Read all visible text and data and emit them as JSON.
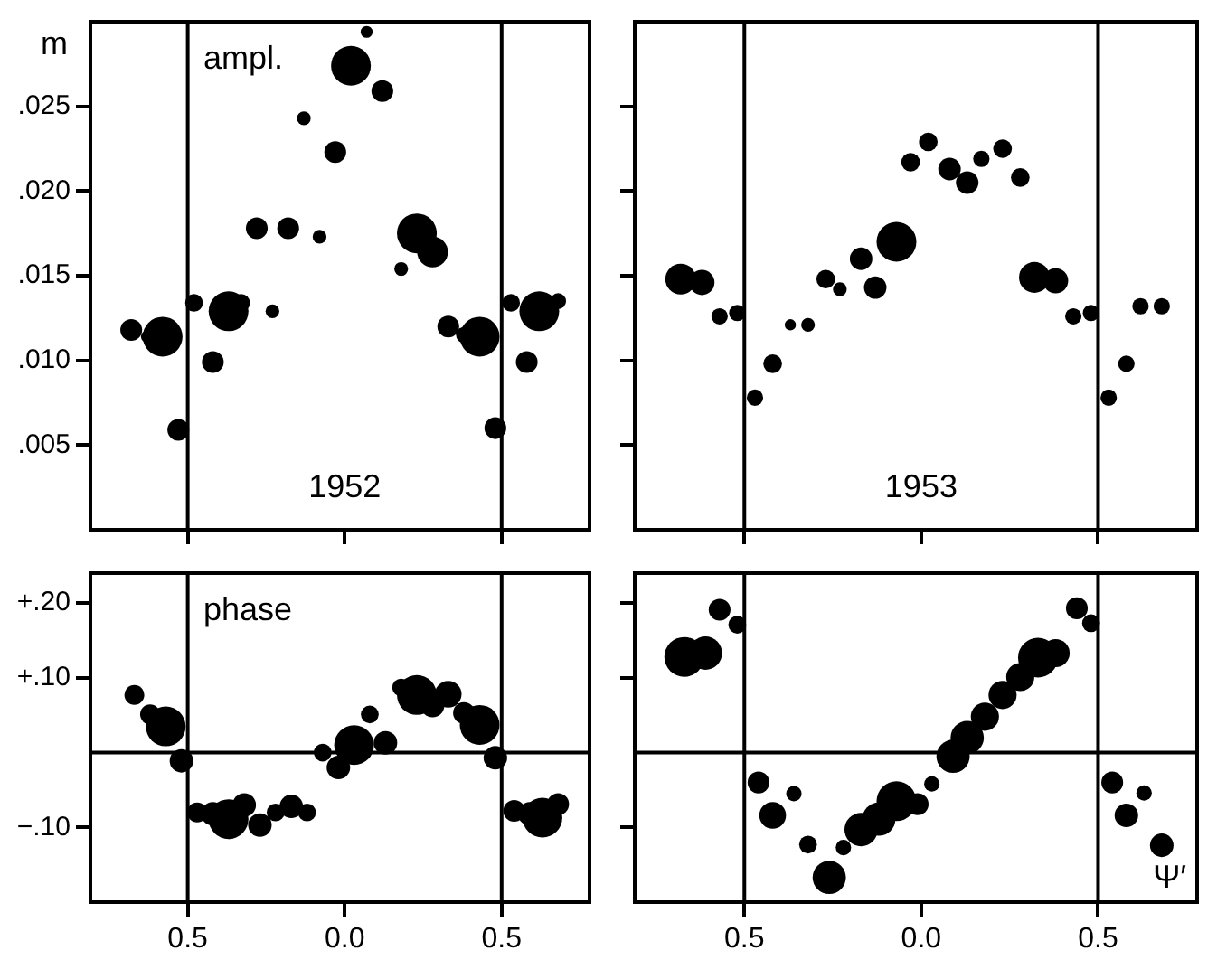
{
  "chart_data": [
    {
      "type": "bubble",
      "title": "1952",
      "ylabel": "m",
      "annotations": [
        "ampl."
      ],
      "color": "#000000",
      "tick_labels": "y",
      "grid": false,
      "xlim": [
        -0.81,
        0.78
      ],
      "xticks": [
        -0.5,
        0,
        0.5
      ],
      "ylim": [
        0,
        0.03
      ],
      "yticks": [
        {
          "value": 0.005,
          "label": ".005"
        },
        {
          "value": 0.01,
          "label": ".010"
        },
        {
          "value": 0.015,
          "label": ".015"
        },
        {
          "value": 0.02,
          "label": ".020"
        },
        {
          "value": 0.025,
          "label": ".025"
        }
      ],
      "ref_lines": [
        {
          "axis": "x",
          "value": -0.5
        },
        {
          "axis": "x",
          "value": 0.5
        }
      ],
      "x": [
        -0.68,
        -0.63,
        -0.58,
        -0.53,
        -0.48,
        -0.42,
        -0.37,
        -0.33,
        -0.28,
        -0.23,
        -0.18,
        -0.13,
        -0.08,
        -0.03,
        0.02,
        0.07,
        0.12,
        0.18,
        0.23,
        0.28,
        0.33,
        0.38,
        0.43,
        0.48,
        0.53,
        0.58,
        0.62,
        0.68
      ],
      "values": [
        0.0118,
        0.0114,
        0.0114,
        0.0059,
        0.0134,
        0.0099,
        0.0129,
        0.0134,
        0.0178,
        0.0129,
        0.0178,
        0.0243,
        0.0173,
        0.0223,
        0.0274,
        0.0294,
        0.0259,
        0.0154,
        0.0175,
        0.0164,
        0.012,
        0.0115,
        0.0114,
        0.006,
        0.0134,
        0.0099,
        0.0129,
        0.0135
      ],
      "sizes": [
        0.3,
        0.09,
        1,
        0.3,
        0.2,
        0.3,
        1,
        0.2,
        0.3,
        0.12,
        0.3,
        0.12,
        0.12,
        0.3,
        1,
        0.09,
        0.3,
        0.12,
        1,
        0.6,
        0.3,
        0.16,
        1,
        0.3,
        0.2,
        0.3,
        1,
        0.16
      ]
    },
    {
      "type": "bubble",
      "title": "1953",
      "color": "#000000",
      "tick_labels": false,
      "grid": false,
      "xlim": [
        -0.81,
        0.78
      ],
      "xticks": [
        -0.5,
        0,
        0.5
      ],
      "ylim": [
        0,
        0.03
      ],
      "yticks": [
        0.005,
        0.01,
        0.015,
        0.02,
        0.025
      ],
      "ref_lines": [
        {
          "axis": "x",
          "value": -0.5
        },
        {
          "axis": "x",
          "value": 0.5
        }
      ],
      "x": [
        -0.68,
        -0.62,
        -0.57,
        -0.52,
        -0.47,
        -0.42,
        -0.37,
        -0.32,
        -0.27,
        -0.23,
        -0.17,
        -0.13,
        -0.07,
        -0.03,
        0.02,
        0.08,
        0.13,
        0.17,
        0.23,
        0.28,
        0.32,
        0.38,
        0.43,
        0.48,
        0.53,
        0.58,
        0.62,
        0.68
      ],
      "values": [
        0.0148,
        0.0146,
        0.0126,
        0.0128,
        0.0078,
        0.0098,
        0.0121,
        0.0121,
        0.0148,
        0.0142,
        0.016,
        0.0143,
        0.017,
        0.0217,
        0.0229,
        0.0213,
        0.0205,
        0.0219,
        0.0225,
        0.0208,
        0.0149,
        0.0147,
        0.0126,
        0.0128,
        0.0078,
        0.0098,
        0.0132,
        0.0132
      ],
      "sizes": [
        0.6,
        0.4,
        0.17,
        0.17,
        0.17,
        0.22,
        0.08,
        0.12,
        0.22,
        0.12,
        0.32,
        0.32,
        1,
        0.22,
        0.22,
        0.32,
        0.32,
        0.17,
        0.22,
        0.22,
        0.6,
        0.4,
        0.17,
        0.17,
        0.17,
        0.17,
        0.17,
        0.17
      ]
    },
    {
      "type": "bubble",
      "annotations": [
        "phase"
      ],
      "color": "#000000",
      "grid": false,
      "xlim": [
        -0.81,
        0.78
      ],
      "xticks": [
        {
          "value": -0.5,
          "label": "0.5"
        },
        {
          "value": 0,
          "label": "0.0"
        },
        {
          "value": 0.5,
          "label": "0.5"
        }
      ],
      "ylim": [
        -0.2,
        0.24
      ],
      "yticks": [
        {
          "value": -0.1,
          "label": "−.10"
        },
        {
          "value": 0.1,
          "label": "+.10"
        },
        {
          "value": 0.2,
          "label": "+.20"
        }
      ],
      "ref_lines": [
        {
          "axis": "x",
          "value": -0.5
        },
        {
          "axis": "x",
          "value": 0.5
        },
        {
          "axis": "y",
          "value": 0
        }
      ],
      "x": [
        -0.67,
        -0.62,
        -0.57,
        -0.52,
        -0.47,
        -0.42,
        -0.37,
        -0.32,
        -0.27,
        -0.22,
        -0.17,
        -0.12,
        -0.07,
        -0.02,
        0.03,
        0.08,
        0.13,
        0.18,
        0.23,
        0.28,
        0.33,
        0.38,
        0.43,
        0.48,
        0.54,
        0.59,
        0.63,
        0.68
      ],
      "values": [
        0.077,
        0.051,
        0.035,
        -0.011,
        -0.08,
        -0.082,
        -0.089,
        -0.07,
        -0.097,
        -0.08,
        -0.072,
        -0.08,
        0,
        -0.02,
        0.01,
        0.051,
        0.013,
        0.087,
        0.077,
        0.063,
        0.078,
        0.053,
        0.037,
        -0.007,
        -0.078,
        -0.082,
        -0.087,
        -0.069
      ],
      "sizes": [
        0.25,
        0.25,
        1,
        0.35,
        0.25,
        0.35,
        1,
        0.35,
        0.35,
        0.2,
        0.35,
        0.2,
        0.2,
        0.35,
        1,
        0.2,
        0.35,
        0.2,
        1,
        0.35,
        0.45,
        0.3,
        1,
        0.35,
        0.3,
        0.35,
        1,
        0.3
      ]
    },
    {
      "type": "bubble",
      "xlabel": "Ψ′",
      "color": "#000000",
      "tick_labels": "x",
      "grid": false,
      "xlim": [
        -0.81,
        0.78
      ],
      "xticks": [
        {
          "value": -0.5,
          "label": "0.5"
        },
        {
          "value": 0,
          "label": "0.0"
        },
        {
          "value": 0.5,
          "label": "0.5"
        }
      ],
      "ylim": [
        -0.2,
        0.24
      ],
      "yticks": [
        -0.1,
        0.1,
        0.2
      ],
      "ref_lines": [
        {
          "axis": "x",
          "value": -0.5
        },
        {
          "axis": "x",
          "value": 0.5
        },
        {
          "axis": "y",
          "value": 0
        }
      ],
      "x": [
        -0.67,
        -0.61,
        -0.57,
        -0.52,
        -0.46,
        -0.42,
        -0.36,
        -0.32,
        -0.26,
        -0.22,
        -0.17,
        -0.12,
        -0.07,
        -0.01,
        0.03,
        0.09,
        0.13,
        0.18,
        0.23,
        0.28,
        0.33,
        0.38,
        0.44,
        0.48,
        0.54,
        0.58,
        0.63,
        0.68
      ],
      "values": [
        0.128,
        0.133,
        0.191,
        0.171,
        -0.04,
        -0.084,
        -0.055,
        -0.123,
        -0.167,
        -0.127,
        -0.103,
        -0.089,
        -0.065,
        -0.069,
        -0.042,
        -0.005,
        0.02,
        0.048,
        0.077,
        0.101,
        0.127,
        0.133,
        0.193,
        0.173,
        -0.04,
        -0.084,
        -0.054,
        -0.124
      ],
      "sizes": [
        1,
        0.7,
        0.3,
        0.2,
        0.3,
        0.45,
        0.15,
        0.2,
        0.7,
        0.15,
        0.7,
        0.7,
        1,
        0.3,
        0.15,
        0.7,
        0.7,
        0.5,
        0.5,
        0.5,
        1,
        0.5,
        0.3,
        0.2,
        0.3,
        0.35,
        0.15,
        0.35
      ]
    }
  ]
}
